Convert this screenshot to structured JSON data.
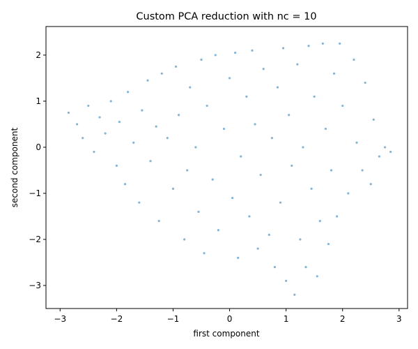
{
  "chart_data": {
    "type": "scatter",
    "title": "Custom PCA reduction with nc = 10",
    "xlabel": "first component",
    "ylabel": "second component",
    "xlim": [
      -3.25,
      3.15
    ],
    "ylim": [
      -3.5,
      2.62
    ],
    "xticks": [
      -3,
      -2,
      -1,
      0,
      1,
      2,
      3
    ],
    "yticks": [
      -3,
      -2,
      -1,
      0,
      1,
      2
    ],
    "grid": false,
    "legend": "none",
    "marker_color": "#1f77b4",
    "series": [
      {
        "points": [
          [
            -2.85,
            0.75
          ],
          [
            -2.7,
            0.5
          ],
          [
            -2.6,
            0.2
          ],
          [
            -2.5,
            0.9
          ],
          [
            -2.4,
            -0.1
          ],
          [
            -2.3,
            0.65
          ],
          [
            -2.2,
            0.3
          ],
          [
            -2.1,
            1.0
          ],
          [
            -2.0,
            -0.4
          ],
          [
            -1.95,
            0.55
          ],
          [
            -1.85,
            -0.8
          ],
          [
            -1.8,
            1.2
          ],
          [
            -1.7,
            0.1
          ],
          [
            -1.6,
            -1.2
          ],
          [
            -1.55,
            0.8
          ],
          [
            -1.45,
            1.45
          ],
          [
            -1.4,
            -0.3
          ],
          [
            -1.3,
            0.45
          ],
          [
            -1.25,
            -1.6
          ],
          [
            -1.2,
            1.6
          ],
          [
            -1.1,
            0.2
          ],
          [
            -1.0,
            -0.9
          ],
          [
            -0.95,
            1.75
          ],
          [
            -0.9,
            0.7
          ],
          [
            -0.8,
            -2.0
          ],
          [
            -0.75,
            -0.5
          ],
          [
            -0.7,
            1.3
          ],
          [
            -0.6,
            0.0
          ],
          [
            -0.55,
            -1.4
          ],
          [
            -0.5,
            1.9
          ],
          [
            -0.45,
            -2.3
          ],
          [
            -0.4,
            0.9
          ],
          [
            -0.3,
            -0.7
          ],
          [
            -0.25,
            2.0
          ],
          [
            -0.2,
            -1.8
          ],
          [
            -0.1,
            0.4
          ],
          [
            0.0,
            1.5
          ],
          [
            0.05,
            -1.1
          ],
          [
            0.1,
            2.05
          ],
          [
            0.15,
            -2.4
          ],
          [
            0.2,
            -0.2
          ],
          [
            0.3,
            1.1
          ],
          [
            0.35,
            -1.5
          ],
          [
            0.4,
            2.1
          ],
          [
            0.45,
            0.5
          ],
          [
            0.5,
            -2.2
          ],
          [
            0.55,
            -0.6
          ],
          [
            0.6,
            1.7
          ],
          [
            0.7,
            -1.9
          ],
          [
            0.75,
            0.2
          ],
          [
            0.8,
            -2.6
          ],
          [
            0.85,
            1.3
          ],
          [
            0.9,
            -1.2
          ],
          [
            0.95,
            2.15
          ],
          [
            1.0,
            -2.9
          ],
          [
            1.05,
            0.7
          ],
          [
            1.1,
            -0.4
          ],
          [
            1.15,
            -3.2
          ],
          [
            1.2,
            1.8
          ],
          [
            1.25,
            -2.0
          ],
          [
            1.3,
            0.0
          ],
          [
            1.35,
            -2.6
          ],
          [
            1.4,
            2.2
          ],
          [
            1.45,
            -0.9
          ],
          [
            1.5,
            1.1
          ],
          [
            1.55,
            -2.8
          ],
          [
            1.6,
            -1.6
          ],
          [
            1.65,
            2.25
          ],
          [
            1.7,
            0.4
          ],
          [
            1.75,
            -2.1
          ],
          [
            1.8,
            -0.5
          ],
          [
            1.85,
            1.6
          ],
          [
            1.9,
            -1.5
          ],
          [
            1.95,
            2.25
          ],
          [
            2.0,
            0.9
          ],
          [
            2.1,
            -1.0
          ],
          [
            2.2,
            1.9
          ],
          [
            2.25,
            0.1
          ],
          [
            2.35,
            -0.5
          ],
          [
            2.4,
            1.4
          ],
          [
            2.5,
            -0.8
          ],
          [
            2.55,
            0.6
          ],
          [
            2.65,
            -0.2
          ],
          [
            2.75,
            0.0
          ],
          [
            2.85,
            -0.1
          ]
        ]
      }
    ]
  }
}
